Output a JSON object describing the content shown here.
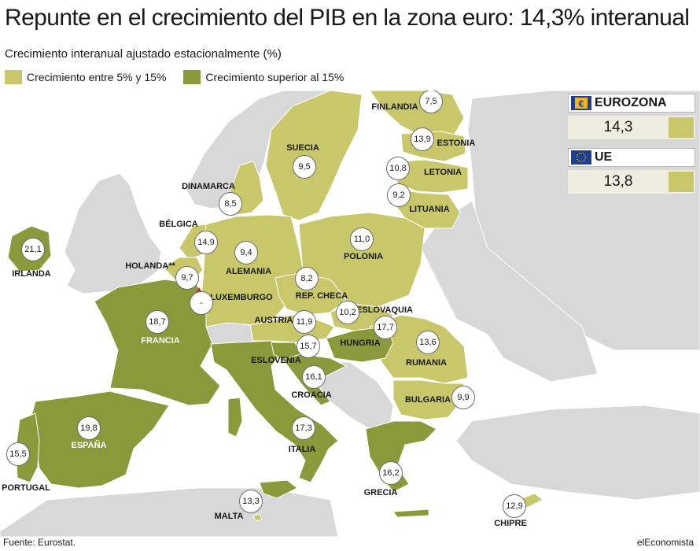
{
  "title": "Repunte en el crecimiento del PIB en la zona euro: 14,3% interanual",
  "subtitle": "Crecimiento interanual ajustado estacionalmente (%)",
  "legend": {
    "low": {
      "label": "Crecimiento entre 5% y 15%",
      "color": "#c8c76a"
    },
    "high": {
      "label": "Crecimiento superior al 15%",
      "color": "#8a9a3a"
    }
  },
  "colors": {
    "other_land": "#d8d8d8",
    "sea": "#ffffff",
    "border": "#ffffff",
    "bubble_border": "#6b6b6b"
  },
  "summary": {
    "eurozone": {
      "label": "EUROZONA",
      "value": "14,3",
      "flag_icon": "euro-icon"
    },
    "eu": {
      "label": "UE",
      "value": "13,8",
      "flag_icon": "eu-flag-icon"
    }
  },
  "countries": [
    {
      "name": "FINLANDIA",
      "value": "7,5",
      "category": "low"
    },
    {
      "name": "ESTONIA",
      "value": "13,9",
      "category": "low"
    },
    {
      "name": "LETONIA",
      "value": "10,8",
      "category": "low"
    },
    {
      "name": "LITUANIA",
      "value": "9,2",
      "category": "low"
    },
    {
      "name": "SUECIA",
      "value": "9,5",
      "category": "low"
    },
    {
      "name": "DINAMARCA",
      "value": "8,5",
      "category": "low"
    },
    {
      "name": "BÉLGICA",
      "value": "14,9",
      "category": "low"
    },
    {
      "name": "HOLANDA**",
      "value": "9,7",
      "category": "low"
    },
    {
      "name": "LUXEMBURGO",
      "value": "-",
      "category": "none"
    },
    {
      "name": "ALEMANIA",
      "value": "9,4",
      "category": "low"
    },
    {
      "name": "POLONIA",
      "value": "11,0",
      "category": "low"
    },
    {
      "name": "REP. CHECA",
      "value": "8,2",
      "category": "low"
    },
    {
      "name": "ESLOVAQUIA",
      "value": "10,2",
      "category": "low"
    },
    {
      "name": "AUSTRIA",
      "value": "11,9",
      "category": "low"
    },
    {
      "name": "HUNGRIA",
      "value": "17,7",
      "category": "high"
    },
    {
      "name": "RUMANIA",
      "value": "13,6",
      "category": "low"
    },
    {
      "name": "BULGARIA",
      "value": "9,9",
      "category": "low"
    },
    {
      "name": "ESLOVENIA",
      "value": "15,7",
      "category": "high"
    },
    {
      "name": "CROACIA",
      "value": "16,1",
      "category": "high"
    },
    {
      "name": "IRLANDA",
      "value": "21,1",
      "category": "high"
    },
    {
      "name": "FRANCIA",
      "value": "18,7",
      "category": "high"
    },
    {
      "name": "ESPAÑA",
      "value": "19,8",
      "category": "high"
    },
    {
      "name": "PORTUGAL",
      "value": "15,5",
      "category": "high"
    },
    {
      "name": "ITALIA",
      "value": "17,3",
      "category": "high"
    },
    {
      "name": "GRECIA",
      "value": "16,2",
      "category": "high"
    },
    {
      "name": "MALTA",
      "value": "13,3",
      "category": "low"
    },
    {
      "name": "CHIPRE",
      "value": "12,9",
      "category": "low"
    }
  ],
  "footer": {
    "source": "Fuente: Eurostat.",
    "brand": "elEconomista"
  }
}
